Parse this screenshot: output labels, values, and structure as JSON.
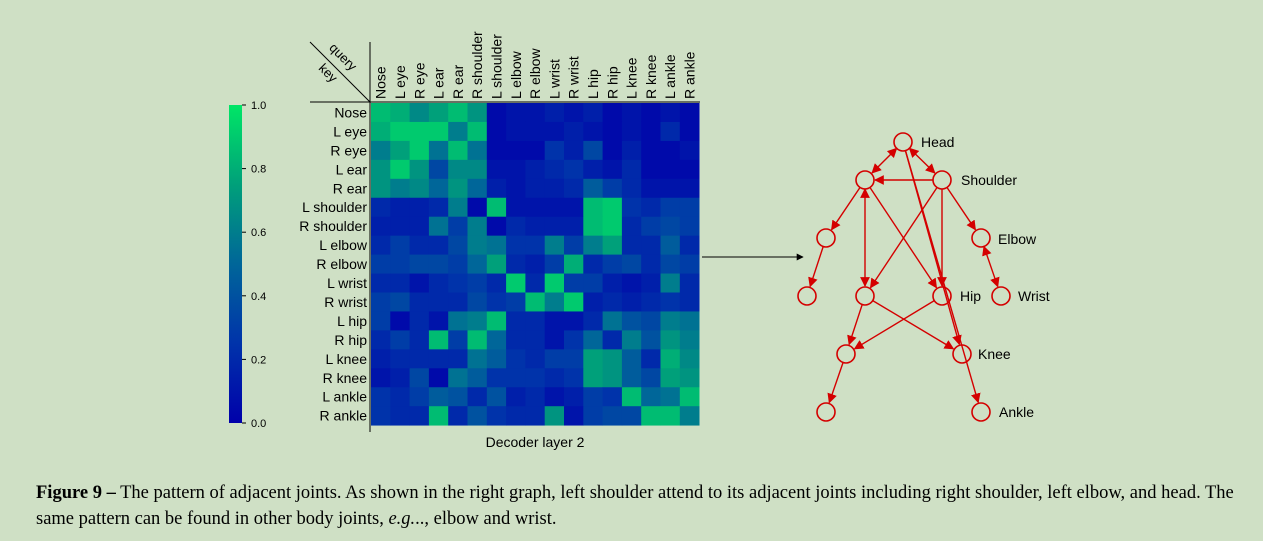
{
  "chart_data": {
    "type": "heatmap",
    "title": "",
    "xlabel": "Decoder layer 2",
    "corner_labels": {
      "top": "query",
      "bottom": "key"
    },
    "rows": [
      "Nose",
      "L eye",
      "R eye",
      "L ear",
      "R ear",
      "L shoulder",
      "R shoulder",
      "L elbow",
      "R elbow",
      "L wrist",
      "R wrist",
      "L hip",
      "R hip",
      "L knee",
      "R knee",
      "L ankle",
      "R ankle"
    ],
    "cols": [
      "Nose",
      "L eye",
      "R eye",
      "L ear",
      "R ear",
      "R shoulder",
      "L shoulder",
      "L elbow",
      "R elbow",
      "L wrist",
      "R wrist",
      "L hip",
      "R hip",
      "L knee",
      "R knee",
      "L ankle",
      "R ankle"
    ],
    "values": [
      [
        0.85,
        0.8,
        0.65,
        0.75,
        0.85,
        0.7,
        0.05,
        0.1,
        0.1,
        0.15,
        0.1,
        0.15,
        0.05,
        0.1,
        0.05,
        0.1,
        0.05
      ],
      [
        0.8,
        0.9,
        0.9,
        0.9,
        0.6,
        0.85,
        0.05,
        0.1,
        0.1,
        0.1,
        0.15,
        0.1,
        0.05,
        0.1,
        0.05,
        0.2,
        0.05
      ],
      [
        0.6,
        0.75,
        0.9,
        0.55,
        0.85,
        0.55,
        0.05,
        0.05,
        0.05,
        0.25,
        0.15,
        0.35,
        0.05,
        0.15,
        0.05,
        0.05,
        0.1
      ],
      [
        0.7,
        0.9,
        0.7,
        0.35,
        0.65,
        0.65,
        0.1,
        0.1,
        0.15,
        0.2,
        0.25,
        0.15,
        0.1,
        0.2,
        0.05,
        0.05,
        0.05
      ],
      [
        0.7,
        0.6,
        0.65,
        0.5,
        0.7,
        0.5,
        0.15,
        0.1,
        0.15,
        0.15,
        0.2,
        0.45,
        0.3,
        0.2,
        0.1,
        0.1,
        0.1
      ],
      [
        0.2,
        0.15,
        0.15,
        0.2,
        0.6,
        0.05,
        0.85,
        0.1,
        0.1,
        0.1,
        0.1,
        0.85,
        0.9,
        0.25,
        0.2,
        0.3,
        0.3
      ],
      [
        0.15,
        0.15,
        0.15,
        0.55,
        0.3,
        0.6,
        0.05,
        0.2,
        0.15,
        0.15,
        0.15,
        0.85,
        0.9,
        0.2,
        0.3,
        0.35,
        0.3
      ],
      [
        0.2,
        0.3,
        0.2,
        0.2,
        0.35,
        0.6,
        0.55,
        0.25,
        0.25,
        0.6,
        0.3,
        0.6,
        0.75,
        0.2,
        0.2,
        0.45,
        0.2
      ],
      [
        0.3,
        0.3,
        0.35,
        0.35,
        0.3,
        0.5,
        0.75,
        0.2,
        0.15,
        0.3,
        0.8,
        0.2,
        0.3,
        0.35,
        0.2,
        0.35,
        0.3
      ],
      [
        0.2,
        0.2,
        0.1,
        0.2,
        0.25,
        0.3,
        0.2,
        0.9,
        0.2,
        0.9,
        0.3,
        0.3,
        0.15,
        0.1,
        0.15,
        0.6,
        0.2
      ],
      [
        0.3,
        0.35,
        0.2,
        0.2,
        0.2,
        0.35,
        0.25,
        0.3,
        0.85,
        0.6,
        0.9,
        0.15,
        0.2,
        0.15,
        0.2,
        0.25,
        0.2
      ],
      [
        0.3,
        0.05,
        0.2,
        0.1,
        0.55,
        0.6,
        0.85,
        0.2,
        0.2,
        0.1,
        0.1,
        0.2,
        0.55,
        0.4,
        0.35,
        0.6,
        0.55
      ],
      [
        0.2,
        0.3,
        0.2,
        0.85,
        0.3,
        0.85,
        0.5,
        0.2,
        0.2,
        0.1,
        0.25,
        0.5,
        0.2,
        0.6,
        0.4,
        0.7,
        0.6
      ],
      [
        0.15,
        0.2,
        0.2,
        0.2,
        0.2,
        0.55,
        0.45,
        0.25,
        0.2,
        0.3,
        0.3,
        0.75,
        0.7,
        0.45,
        0.2,
        0.8,
        0.65
      ],
      [
        0.1,
        0.15,
        0.35,
        0.05,
        0.55,
        0.45,
        0.25,
        0.25,
        0.25,
        0.2,
        0.25,
        0.75,
        0.7,
        0.45,
        0.35,
        0.75,
        0.7
      ],
      [
        0.25,
        0.2,
        0.3,
        0.45,
        0.4,
        0.2,
        0.4,
        0.15,
        0.2,
        0.1,
        0.15,
        0.3,
        0.25,
        0.85,
        0.5,
        0.55,
        0.85
      ],
      [
        0.25,
        0.2,
        0.2,
        0.85,
        0.2,
        0.4,
        0.25,
        0.2,
        0.2,
        0.7,
        0.1,
        0.3,
        0.35,
        0.35,
        0.85,
        0.85,
        0.6
      ]
    ],
    "colorbar": {
      "min": 0.0,
      "max": 1.0,
      "ticks": [
        "0.0",
        "0.2",
        "0.4",
        "0.6",
        "0.8",
        "1.0"
      ]
    }
  },
  "graph": {
    "labels": {
      "head": "Head",
      "shoulder": "Shoulder",
      "elbow": "Elbow",
      "wrist": "Wrist",
      "hip": "Hip",
      "knee": "Knee",
      "ankle": "Ankle"
    },
    "edge_color": "#d40000"
  },
  "caption": {
    "lead": "Figure 9 –",
    "text1": " The pattern of adjacent joints. As shown in the right graph, left shoulder attend to its adjacent joints including right shoulder, left elbow, and head. The same pattern can be found in other body joints, ",
    "italic": "e.g.",
    "text2": ".., elbow and wrist."
  }
}
